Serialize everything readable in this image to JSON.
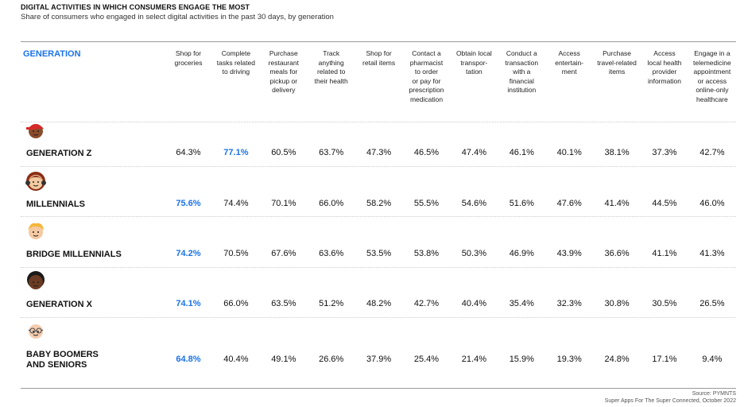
{
  "header": {
    "title": "DIGITAL ACTIVITIES IN WHICH CONSUMERS ENGAGE THE MOST",
    "subtitle": "Share of consumers who engaged in select digital activities in the past 30 days, by generation"
  },
  "table": {
    "row_header": "GENERATION",
    "highlight_color": "#1a73e8",
    "columns": [
      [
        "Shop for",
        "groceries"
      ],
      [
        "Complete",
        "tasks related",
        "to driving"
      ],
      [
        "Purchase",
        "restaurant",
        "meals for",
        "pickup or",
        "delivery"
      ],
      [
        "Track",
        "anything",
        "related to",
        "their health"
      ],
      [
        "Shop for",
        "retail items"
      ],
      [
        "Contact a",
        "pharmacist",
        "to order",
        "or pay for",
        "prescription",
        "medication"
      ],
      [
        "Obtain local",
        "transpor-",
        "tation"
      ],
      [
        "Conduct a",
        "transaction",
        "with a",
        "financial",
        "institution"
      ],
      [
        "Access",
        "entertain-",
        "ment"
      ],
      [
        "Purchase",
        "travel-related",
        "items"
      ],
      [
        "Access",
        "local health",
        "provider",
        "information"
      ],
      [
        "Engage in a",
        "telemedicine",
        "appointment",
        "or access",
        "online-only",
        "healthcare"
      ]
    ],
    "rows": [
      {
        "name": [
          "GENERATION Z"
        ],
        "highlight": 1,
        "cells": [
          "64.3%",
          "77.1%",
          "60.5%",
          "63.7%",
          "47.3%",
          "46.5%",
          "47.4%",
          "46.1%",
          "40.1%",
          "38.1%",
          "37.3%",
          "42.7%"
        ]
      },
      {
        "name": [
          "MILLENNIALS"
        ],
        "highlight": 0,
        "cells": [
          "75.6%",
          "74.4%",
          "70.1%",
          "66.0%",
          "58.2%",
          "55.5%",
          "54.6%",
          "51.6%",
          "47.6%",
          "41.4%",
          "44.5%",
          "46.0%"
        ]
      },
      {
        "name": [
          "BRIDGE MILLENNIALS"
        ],
        "highlight": 0,
        "cells": [
          "74.2%",
          "70.5%",
          "67.6%",
          "63.6%",
          "53.5%",
          "53.8%",
          "50.3%",
          "46.9%",
          "43.9%",
          "36.6%",
          "41.1%",
          "41.3%"
        ]
      },
      {
        "name": [
          "GENERATION X"
        ],
        "highlight": 0,
        "cells": [
          "74.1%",
          "66.0%",
          "63.5%",
          "51.2%",
          "48.2%",
          "42.7%",
          "40.4%",
          "35.4%",
          "32.3%",
          "30.8%",
          "30.5%",
          "26.5%"
        ]
      },
      {
        "name": [
          "BABY BOOMERS",
          "AND SENIORS"
        ],
        "highlight": 0,
        "cells": [
          "64.8%",
          "40.4%",
          "49.1%",
          "26.6%",
          "37.9%",
          "25.4%",
          "21.4%",
          "15.9%",
          "19.3%",
          "24.8%",
          "17.1%",
          "9.4%"
        ]
      }
    ]
  },
  "footer": {
    "source": "Source: PYMNTS",
    "report": "Super Apps For The Super Connected, October 2022"
  }
}
